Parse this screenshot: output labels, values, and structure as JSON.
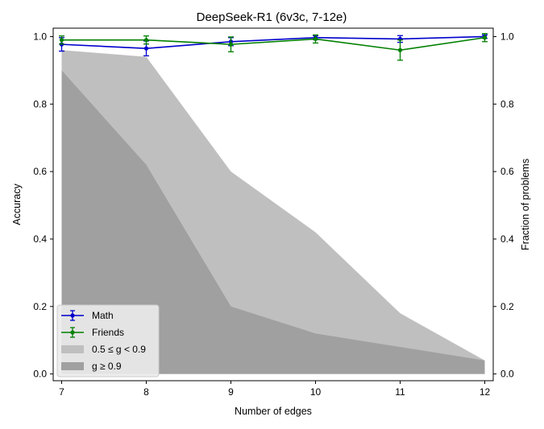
{
  "chart_data": {
    "type": "line",
    "title": "DeepSeek-R1 (6v3c, 7-12e)",
    "xlabel": "Number of edges",
    "ylabel": "Accuracy",
    "y2label": "Fraction of problems",
    "x": [
      7,
      8,
      9,
      10,
      11,
      12
    ],
    "xlim": [
      6.9,
      12.1
    ],
    "ylim": [
      -0.02,
      1.025
    ],
    "y2lim": [
      -0.02,
      1.025
    ],
    "xticks": [
      "7",
      "8",
      "9",
      "10",
      "11",
      "12"
    ],
    "yticks": [
      "0.0",
      "0.2",
      "0.4",
      "0.6",
      "0.8",
      "1.0"
    ],
    "y2ticks": [
      "0.0",
      "0.2",
      "0.4",
      "0.6",
      "0.8",
      "1.0"
    ],
    "grid": false,
    "legend_position": "lower-left",
    "series": [
      {
        "name": "Math",
        "kind": "line-errorbar",
        "axis": "left",
        "color": "#0000cc",
        "values": [
          0.977,
          0.965,
          0.985,
          0.997,
          0.993,
          1.0
        ],
        "errors": [
          0.02,
          0.022,
          0.012,
          0.006,
          0.01,
          0.005
        ]
      },
      {
        "name": "Friends",
        "kind": "line-errorbar",
        "axis": "left",
        "color": "#008000",
        "values": [
          0.99,
          0.99,
          0.977,
          0.993,
          0.96,
          0.997
        ],
        "errors": [
          0.012,
          0.012,
          0.022,
          0.012,
          0.03,
          0.012
        ]
      },
      {
        "name": "0.5 ≤ g < 0.9",
        "kind": "area",
        "axis": "right",
        "color": "#bfbfbf",
        "values": [
          0.96,
          0.94,
          0.6,
          0.42,
          0.18,
          0.04
        ]
      },
      {
        "name": "g ≥ 0.9",
        "kind": "area",
        "axis": "right",
        "color": "#a0a0a0",
        "values": [
          0.9,
          0.62,
          0.2,
          0.12,
          0.08,
          0.04
        ]
      }
    ]
  }
}
